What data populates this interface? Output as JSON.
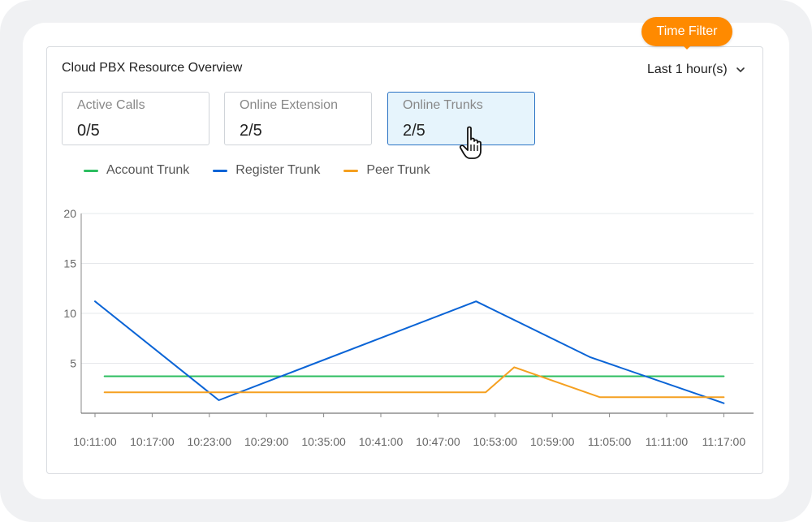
{
  "panel": {
    "title": "Cloud PBX Resource Overview",
    "time_filter": {
      "selected": "Last 1 hour(s)"
    },
    "tooltip": "Time Filter"
  },
  "stats": [
    {
      "label": "Active Calls",
      "value": "0/5",
      "active": false
    },
    {
      "label": "Online Extension",
      "value": "2/5",
      "active": false
    },
    {
      "label": "Online Trunks",
      "value": "2/5",
      "active": true
    }
  ],
  "colors": {
    "account_trunk": "#2dbe60",
    "register_trunk": "#0a64d6",
    "peer_trunk": "#f5a020",
    "tooltip": "#ff8a00"
  },
  "chart_data": {
    "type": "line",
    "yticks": [
      "20",
      "15",
      "10",
      "5"
    ],
    "ylim": [
      0,
      20
    ],
    "x": [
      "10:11:00",
      "10:17:00",
      "10:23:00",
      "10:29:00",
      "10:35:00",
      "10:41:00",
      "10:47:00",
      "10:53:00",
      "10:59:00",
      "11:05:00",
      "11:11:00",
      "11:17:00"
    ],
    "grid": true,
    "legend_position": "top-left",
    "series": [
      {
        "name": "Account Trunk",
        "color": "#2dbe60",
        "points": [
          [
            "10:12:00",
            3.7
          ],
          [
            "11:17:00",
            3.7
          ]
        ]
      },
      {
        "name": "Register Trunk",
        "color": "#0a64d6",
        "points": [
          [
            "10:11:00",
            11.2
          ],
          [
            "10:24:00",
            1.3
          ],
          [
            "10:51:00",
            11.2
          ],
          [
            "11:03:00",
            5.6
          ],
          [
            "11:17:00",
            1.0
          ]
        ]
      },
      {
        "name": "Peer Trunk",
        "color": "#f5a020",
        "points": [
          [
            "10:12:00",
            2.1
          ],
          [
            "10:52:00",
            2.1
          ],
          [
            "10:55:00",
            4.6
          ],
          [
            "11:04:00",
            1.6
          ],
          [
            "11:17:00",
            1.6
          ]
        ]
      }
    ]
  }
}
